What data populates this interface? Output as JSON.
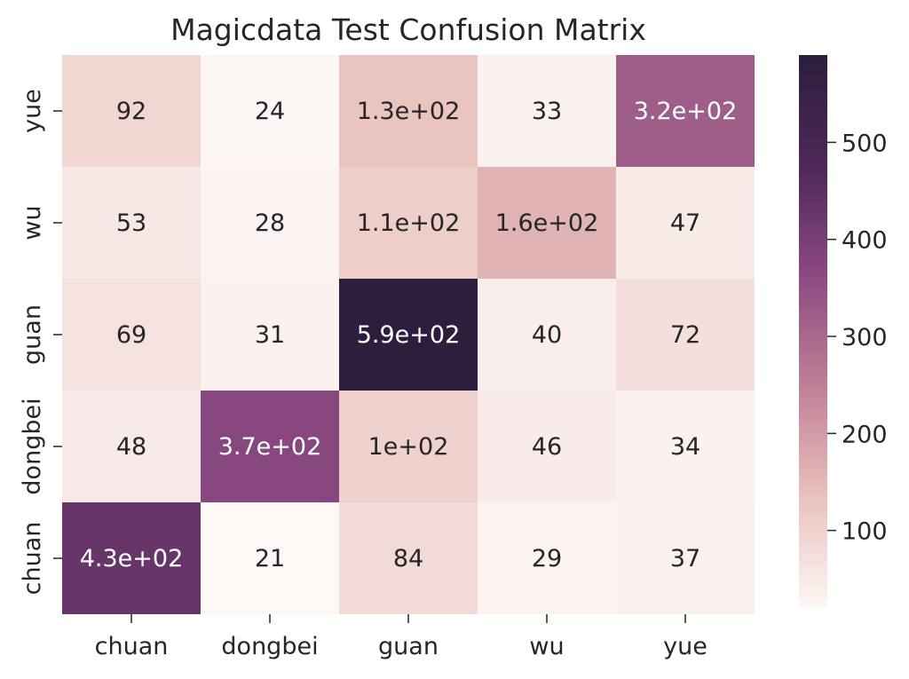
{
  "chart_data": {
    "type": "heatmap",
    "title": "Magicdata Test Confusion Matrix",
    "xlabel": "",
    "ylabel": "",
    "x_categories": [
      "chuan",
      "dongbei",
      "guan",
      "wu",
      "yue"
    ],
    "y_categories": [
      "yue",
      "wu",
      "guan",
      "dongbei",
      "chuan"
    ],
    "values": [
      [
        92,
        24,
        130,
        33,
        320
      ],
      [
        53,
        28,
        110,
        160,
        47
      ],
      [
        69,
        31,
        590,
        40,
        72
      ],
      [
        48,
        370,
        100,
        46,
        34
      ],
      [
        430,
        21,
        84,
        29,
        37
      ]
    ],
    "cell_labels": [
      [
        "92",
        "24",
        "1.3e+02",
        "33",
        "3.2e+02"
      ],
      [
        "53",
        "28",
        "1.1e+02",
        "1.6e+02",
        "47"
      ],
      [
        "69",
        "31",
        "5.9e+02",
        "40",
        "72"
      ],
      [
        "48",
        "3.7e+02",
        "1e+02",
        "46",
        "34"
      ],
      [
        "4.3e+02",
        "21",
        "84",
        "29",
        "37"
      ]
    ],
    "colorbar": {
      "vmin": 21,
      "vmax": 590,
      "ticks": [
        100,
        200,
        300,
        400,
        500
      ],
      "tick_labels": [
        "100",
        "200",
        "300",
        "400",
        "500"
      ]
    },
    "colormap": [
      "#fdf7f5",
      "#e9c2bd",
      "#c07f96",
      "#8c4a82",
      "#4d2857",
      "#2d1e3e"
    ],
    "text_color_dark": "#262626",
    "text_color_light": "#ffffff"
  }
}
